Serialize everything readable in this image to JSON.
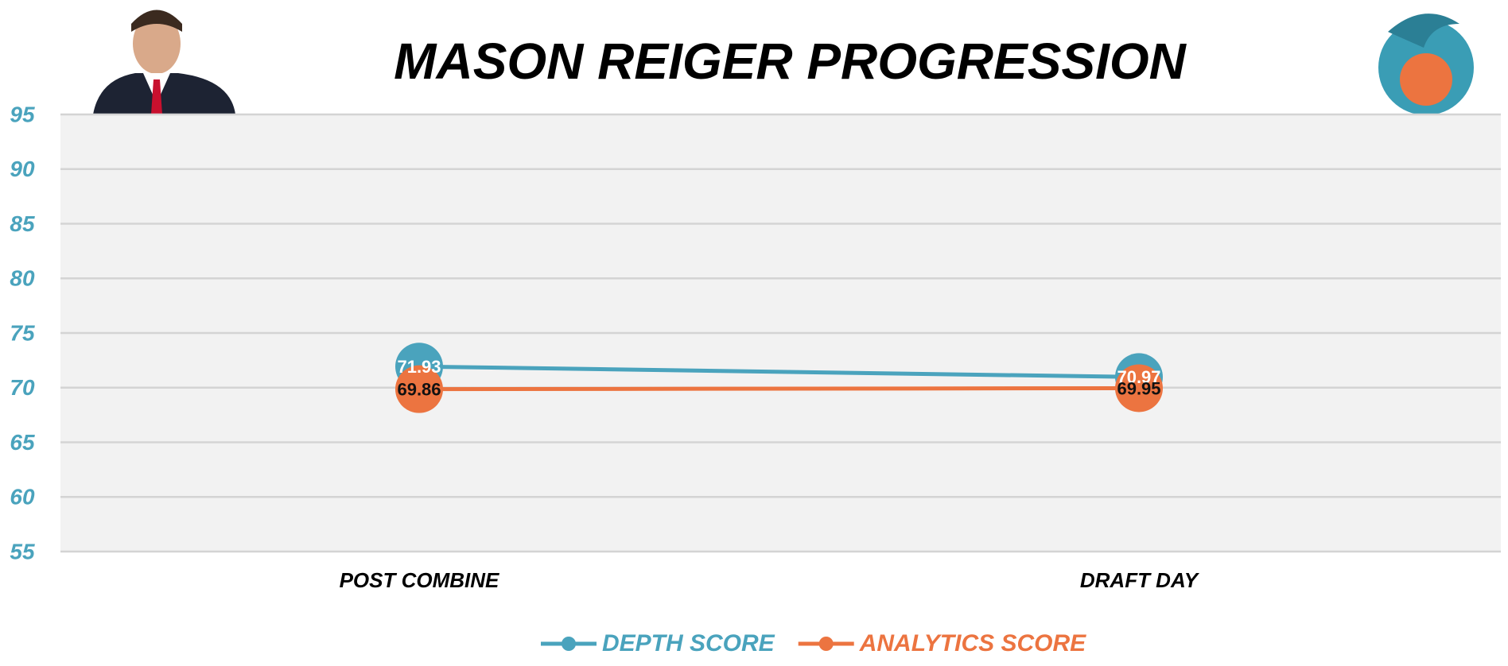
{
  "chart_data": {
    "type": "line",
    "title": "MASON REIGER PROGRESSION",
    "categories": [
      "POST COMBINE",
      "DRAFT DAY"
    ],
    "series": [
      {
        "name": "DEPTH SCORE",
        "color": "#4aa3bd",
        "values": [
          71.93,
          70.97
        ]
      },
      {
        "name": "ANALYTICS SCORE",
        "color": "#ec7440",
        "values": [
          69.86,
          69.95
        ]
      }
    ],
    "ylim": [
      55,
      95
    ],
    "yticks": [
      55,
      60,
      65,
      70,
      75,
      80,
      85,
      90,
      95
    ],
    "grid": true,
    "legend": "bottom"
  }
}
